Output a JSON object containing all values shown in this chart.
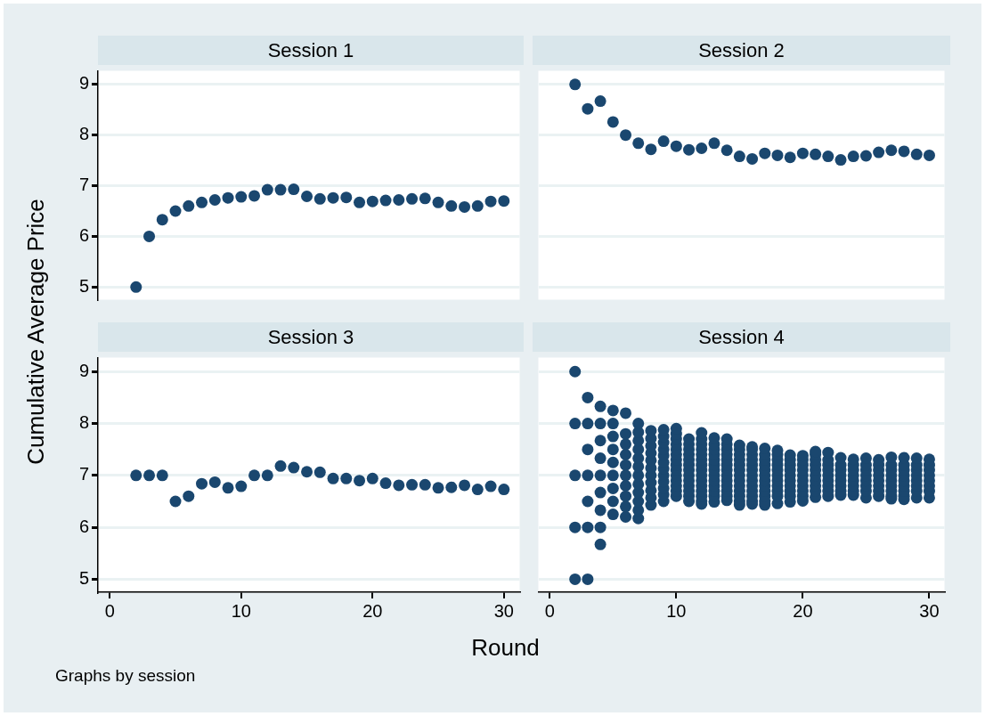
{
  "chart_data": [
    {
      "type": "scatter",
      "title": "Session 1",
      "ylabel": "Cumulative Average Price",
      "x": [
        2,
        3,
        4,
        5,
        6,
        7,
        8,
        9,
        10,
        11,
        12,
        13,
        14,
        15,
        16,
        17,
        18,
        19,
        20,
        21,
        22,
        23,
        24,
        25,
        26,
        27,
        28,
        29,
        30
      ],
      "series": [
        {
          "color": "#1a476f",
          "values": [
            5.0,
            6.0,
            6.33,
            6.5,
            6.6,
            6.67,
            6.72,
            6.76,
            6.78,
            6.8,
            6.92,
            6.92,
            6.93,
            6.79,
            6.74,
            6.76,
            6.77,
            6.67,
            6.69,
            6.71,
            6.72,
            6.74,
            6.75,
            6.67,
            6.6,
            6.58,
            6.6,
            6.69,
            6.7
          ]
        }
      ],
      "xlim": [
        -0.9,
        31.2
      ],
      "ylim": [
        4.75,
        9.27
      ],
      "xticks": [
        0,
        10,
        20,
        30
      ],
      "yticks": [
        5,
        6,
        7,
        8,
        9
      ],
      "grid": "y",
      "marker": "circle",
      "tick_labels": "y"
    },
    {
      "type": "scatter",
      "title": "Session 2",
      "x": [
        2,
        3,
        4,
        5,
        6,
        7,
        8,
        9,
        10,
        11,
        12,
        13,
        14,
        15,
        16,
        17,
        18,
        19,
        20,
        21,
        22,
        23,
        24,
        25,
        26,
        27,
        28,
        29,
        30
      ],
      "series": [
        {
          "color": "#1a476f",
          "values": [
            9.0,
            8.52,
            8.67,
            8.26,
            8.0,
            7.84,
            7.72,
            7.88,
            7.78,
            7.71,
            7.74,
            7.84,
            7.7,
            7.58,
            7.53,
            7.64,
            7.6,
            7.56,
            7.64,
            7.62,
            7.58,
            7.51,
            7.58,
            7.59,
            7.66,
            7.7,
            7.68,
            7.62,
            7.6
          ]
        }
      ],
      "xlim": [
        -0.9,
        31.2
      ],
      "ylim": [
        4.75,
        9.27
      ],
      "xticks": [
        0,
        10,
        20,
        30
      ],
      "yticks": [
        5,
        6,
        7,
        8,
        9
      ],
      "grid": "y",
      "marker": "circle",
      "tick_labels": false
    },
    {
      "type": "scatter",
      "title": "Session 3",
      "xlabel": "Round",
      "annotations": [
        "Graphs by session"
      ],
      "x": [
        2,
        3,
        4,
        5,
        6,
        7,
        8,
        9,
        10,
        11,
        12,
        13,
        14,
        15,
        16,
        17,
        18,
        19,
        20,
        21,
        22,
        23,
        24,
        25,
        26,
        27,
        28,
        29,
        30
      ],
      "series": [
        {
          "color": "#1a476f",
          "values": [
            7,
            7,
            7,
            6.5,
            6.6,
            6.84,
            6.87,
            6.76,
            6.79,
            7,
            7,
            7.18,
            7.15,
            7.07,
            7.06,
            6.94,
            6.94,
            6.9,
            6.94,
            6.85,
            6.81,
            6.82,
            6.82,
            6.76,
            6.77,
            6.81,
            6.73,
            6.79,
            6.73
          ]
        }
      ],
      "xlim": [
        -0.9,
        31.2
      ],
      "ylim": [
        4.75,
        9.27
      ],
      "xticks": [
        0,
        10,
        20,
        30
      ],
      "yticks": [
        5,
        6,
        7,
        8,
        9
      ],
      "grid": "y",
      "marker": "circle"
    },
    {
      "type": "scatter",
      "title": "Session 4",
      "series": [
        {
          "color": "#1a476f",
          "x": [
            2,
            2,
            2,
            2,
            2,
            3,
            3,
            3,
            3,
            3,
            3,
            3,
            4,
            4,
            4,
            4,
            4,
            4,
            4,
            4,
            4,
            5,
            5,
            5,
            5,
            5,
            5,
            5,
            5,
            5,
            6,
            6,
            6,
            6,
            6,
            6,
            6,
            6,
            6,
            6,
            7,
            7,
            7,
            7,
            7,
            7,
            7,
            7,
            7,
            7,
            7,
            7,
            8,
            8,
            8,
            8,
            8,
            8,
            8,
            8,
            8,
            8,
            8,
            9,
            9,
            9,
            9,
            9,
            9,
            9,
            9,
            9,
            9,
            9,
            9,
            10,
            10,
            10,
            10,
            10,
            10,
            10,
            10,
            10,
            10,
            10,
            10,
            10,
            10,
            11,
            11,
            11,
            11,
            11,
            11,
            11,
            11,
            11,
            11,
            11,
            11,
            11,
            12,
            12,
            12,
            12,
            12,
            12,
            12,
            12,
            12,
            12,
            12,
            12,
            12,
            12,
            12,
            13,
            13,
            13,
            13,
            13,
            13,
            13,
            13,
            13,
            13,
            13,
            13,
            13,
            14,
            14,
            14,
            14,
            14,
            14,
            14,
            14,
            14,
            14,
            14,
            14,
            14,
            15,
            15,
            15,
            15,
            15,
            15,
            15,
            15,
            15,
            15,
            15,
            15,
            15,
            16,
            16,
            16,
            16,
            16,
            16,
            16,
            16,
            16,
            16,
            16,
            16,
            16,
            17,
            17,
            17,
            17,
            17,
            17,
            17,
            17,
            17,
            17,
            17,
            17,
            18,
            18,
            18,
            18,
            18,
            18,
            18,
            18,
            18,
            18,
            18,
            19,
            19,
            19,
            19,
            19,
            19,
            19,
            19,
            19,
            19,
            20,
            20,
            20,
            20,
            20,
            20,
            20,
            20,
            20,
            20,
            21,
            21,
            21,
            21,
            21,
            21,
            21,
            21,
            21,
            21,
            22,
            22,
            22,
            22,
            22,
            22,
            22,
            22,
            22,
            23,
            23,
            23,
            23,
            23,
            23,
            23,
            23,
            24,
            24,
            24,
            24,
            24,
            24,
            24,
            24,
            25,
            25,
            25,
            25,
            25,
            25,
            25,
            25,
            26,
            26,
            26,
            26,
            26,
            26,
            26,
            26,
            27,
            27,
            27,
            27,
            27,
            27,
            27,
            27,
            27,
            28,
            28,
            28,
            28,
            28,
            28,
            28,
            28,
            28,
            29,
            29,
            29,
            29,
            29,
            29,
            29,
            29,
            30,
            30,
            30,
            30,
            30,
            30,
            30,
            30
          ],
          "values": [
            5,
            6,
            7,
            8,
            9,
            5,
            6,
            6.5,
            7,
            7.5,
            8,
            8.5,
            5.67,
            6,
            6.33,
            6.67,
            7,
            7.33,
            7.67,
            8,
            8.33,
            6.25,
            6.5,
            6.75,
            7,
            7.25,
            7.5,
            7.75,
            8,
            8.25,
            6.2,
            6.4,
            6.6,
            6.8,
            7,
            7.2,
            7.4,
            7.6,
            7.8,
            8.2,
            6.17,
            6.33,
            6.5,
            6.67,
            6.83,
            7,
            7.17,
            7.33,
            7.5,
            7.67,
            7.83,
            8,
            6.43,
            6.57,
            6.71,
            6.86,
            7,
            7.14,
            7.29,
            7.43,
            7.57,
            7.71,
            7.86,
            6.5,
            6.63,
            6.75,
            6.88,
            7,
            7.13,
            7.25,
            7.38,
            7.5,
            7.63,
            7.75,
            7.88,
            6.6,
            6.7,
            6.8,
            6.9,
            7,
            7.1,
            7.2,
            7.3,
            7.4,
            7.5,
            7.6,
            7.7,
            7.8,
            7.9,
            6.5,
            6.6,
            6.7,
            6.8,
            6.9,
            7,
            7.1,
            7.2,
            7.3,
            7.4,
            7.5,
            7.6,
            7.7,
            6.45,
            6.5,
            6.6,
            6.7,
            6.8,
            6.9,
            7,
            7.1,
            7.2,
            7.3,
            7.4,
            7.5,
            7.6,
            7.7,
            7.82,
            6.49,
            6.6,
            6.7,
            6.8,
            6.9,
            7,
            7.1,
            7.2,
            7.3,
            7.4,
            7.5,
            7.6,
            7.72,
            6.52,
            6.6,
            6.7,
            6.8,
            6.9,
            7,
            7.1,
            7.2,
            7.3,
            7.4,
            7.5,
            7.6,
            7.7,
            6.43,
            6.5,
            6.6,
            6.7,
            6.8,
            6.9,
            7,
            7.1,
            7.2,
            7.3,
            7.4,
            7.5,
            7.58,
            6.45,
            6.5,
            6.6,
            6.7,
            6.8,
            6.9,
            7,
            7.1,
            7.2,
            7.3,
            7.4,
            7.5,
            7.55,
            6.43,
            6.5,
            6.6,
            6.7,
            6.8,
            6.9,
            7,
            7.1,
            7.2,
            7.3,
            7.4,
            7.52,
            6.46,
            6.6,
            6.7,
            6.8,
            6.9,
            7,
            7.1,
            7.2,
            7.3,
            7.4,
            7.48,
            6.49,
            6.6,
            6.7,
            6.8,
            6.9,
            7,
            7.1,
            7.2,
            7.3,
            7.39,
            6.51,
            6.6,
            6.7,
            6.8,
            6.9,
            7,
            7.1,
            7.2,
            7.3,
            7.38,
            6.58,
            6.7,
            6.8,
            6.9,
            7,
            7.1,
            7.2,
            7.3,
            7.4,
            7.46,
            6.6,
            6.7,
            6.8,
            6.9,
            7,
            7.1,
            7.2,
            7.3,
            7.44,
            6.62,
            6.7,
            6.8,
            6.9,
            7,
            7.1,
            7.2,
            7.34,
            6.62,
            6.7,
            6.8,
            6.9,
            7,
            7.1,
            7.2,
            7.31,
            6.57,
            6.7,
            6.8,
            6.9,
            7,
            7.1,
            7.2,
            7.33,
            6.6,
            6.7,
            6.8,
            6.9,
            7,
            7.1,
            7.2,
            7.3,
            6.55,
            6.6,
            6.7,
            6.8,
            6.9,
            7,
            7.1,
            7.2,
            7.35,
            6.54,
            6.6,
            6.7,
            6.8,
            6.9,
            7,
            7.1,
            7.2,
            7.34,
            6.57,
            6.7,
            6.8,
            6.9,
            7,
            7.1,
            7.2,
            7.33,
            6.57,
            6.7,
            6.8,
            6.9,
            7,
            7.1,
            7.2,
            7.31
          ]
        }
      ],
      "xlim": [
        -0.9,
        31.2
      ],
      "ylim": [
        4.75,
        9.27
      ],
      "xticks": [
        0,
        10,
        20,
        30
      ],
      "yticks": [
        5,
        6,
        7,
        8,
        9
      ],
      "grid": "y",
      "marker": "circle",
      "tick_labels": "x"
    }
  ]
}
